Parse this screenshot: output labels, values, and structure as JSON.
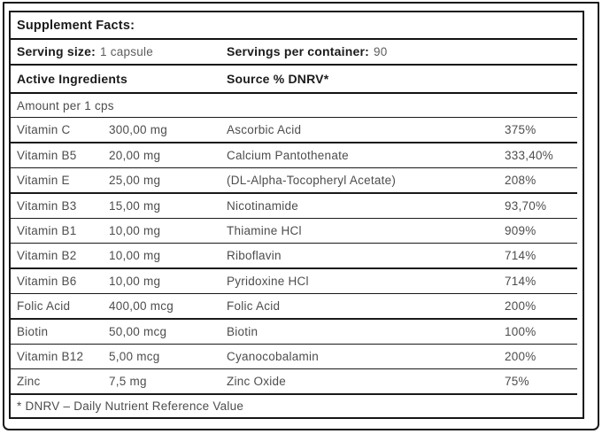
{
  "label": {
    "title": "Supplement Facts:",
    "serving": {
      "size_label": "Serving size:",
      "size_value": "1 capsule",
      "container_label": "Servings per container:",
      "container_value": "90"
    },
    "columns": {
      "active_ingredients": "Active Ingredients",
      "source": "Source % DNRV*"
    },
    "amount_header": "Amount per 1 cps",
    "rows": [
      {
        "name": "Vitamin C",
        "amount": "300,00 mg",
        "source": "Ascorbic Acid",
        "dnrv": "375%"
      },
      {
        "name": "Vitamin B5",
        "amount": "20,00 mg",
        "source": "Calcium Pantothenate",
        "dnrv": "333,40%"
      },
      {
        "name": "Vitamin E",
        "amount": "25,00 mg",
        "source": "(DL-Alpha-Tocopheryl Acetate)",
        "dnrv": "208%"
      },
      {
        "name": "Vitamin B3",
        "amount": "15,00 mg",
        "source": "Nicotinamide",
        "dnrv": "93,70%"
      },
      {
        "name": "Vitamin B1",
        "amount": "10,00 mg",
        "source": "Thiamine HCl",
        "dnrv": "909%"
      },
      {
        "name": "Vitamin B2",
        "amount": "10,00 mg",
        "source": "Riboflavin",
        "dnrv": "714%"
      },
      {
        "name": "Vitamin B6",
        "amount": "10,00 mg",
        "source": "Pyridoxine HCl",
        "dnrv": "714%"
      },
      {
        "name": "Folic Acid",
        "amount": "400,00 mcg",
        "source": "Folic Acid",
        "dnrv": "200%"
      },
      {
        "name": "Biotin",
        "amount": "50,00 mcg",
        "source": "Biotin",
        "dnrv": "100%"
      },
      {
        "name": "Vitamin B12",
        "amount": "5,00 mcg",
        "source": "Cyanocobalamin",
        "dnrv": "200%"
      },
      {
        "name": "Zinc",
        "amount": "7,5 mg",
        "source": "Zinc Oxide",
        "dnrv": "75%"
      }
    ],
    "footnote": "* DNRV – Daily Nutrient Reference Value"
  },
  "colors": {
    "border": "#161616",
    "text_dark": "#1b1b1b",
    "text_gray": "#4d4d4d",
    "text_light_gray": "#5d5d5d",
    "background": "#ffffff"
  }
}
